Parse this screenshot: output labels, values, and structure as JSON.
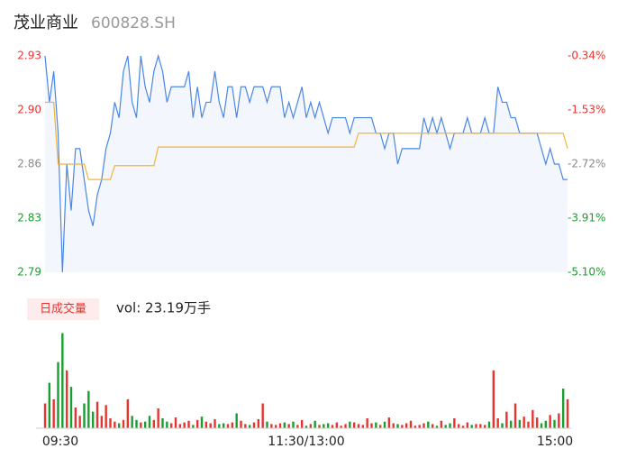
{
  "header": {
    "name": "茂业商业",
    "code": "600828.SH"
  },
  "chart_data": [
    {
      "type": "line",
      "xlim": [
        0,
        120
      ],
      "xticks": [
        {
          "value": 0,
          "label": "09:30"
        },
        {
          "value": 60,
          "label": "11:30/13:00"
        },
        {
          "value": 120,
          "label": "15:00"
        }
      ],
      "ylim": [
        2.79,
        2.93
      ],
      "yticks": [
        2.79,
        {
          "value": 2.825,
          "label": "2.83"
        },
        2.86,
        {
          "value": 2.895,
          "label": "2.90"
        },
        2.93
      ],
      "y2lim": [
        -5.1,
        -0.34
      ],
      "y2ticks": [
        {
          "value": -5.1,
          "label": "-5.10%"
        },
        {
          "value": -3.91,
          "label": "-3.91%"
        },
        {
          "value": -2.72,
          "label": "-2.72%"
        },
        {
          "value": -1.53,
          "label": "-1.53%"
        },
        {
          "value": -0.34,
          "label": "-0.34%"
        }
      ],
      "up_color": "#e8342f",
      "down_color": "#1a9e2f",
      "flat_color": "#888888",
      "series": [
        {
          "color": "#4a86e8",
          "fill": "#f3f7fd",
          "values": [
            2.93,
            2.9,
            2.92,
            2.88,
            2.79,
            2.86,
            2.83,
            2.87,
            2.87,
            2.85,
            2.83,
            2.82,
            2.84,
            2.85,
            2.87,
            2.88,
            2.9,
            2.89,
            2.92,
            2.93,
            2.9,
            2.89,
            2.93,
            2.91,
            2.9,
            2.92,
            2.93,
            2.92,
            2.9,
            2.91,
            2.91,
            2.91,
            2.91,
            2.92,
            2.89,
            2.91,
            2.89,
            2.9,
            2.9,
            2.92,
            2.9,
            2.89,
            2.91,
            2.91,
            2.89,
            2.91,
            2.91,
            2.9,
            2.91,
            2.91,
            2.91,
            2.9,
            2.91,
            2.91,
            2.91,
            2.89,
            2.9,
            2.89,
            2.9,
            2.91,
            2.89,
            2.9,
            2.89,
            2.9,
            2.89,
            2.88,
            2.89,
            2.89,
            2.89,
            2.89,
            2.88,
            2.89,
            2.89,
            2.89,
            2.89,
            2.89,
            2.88,
            2.88,
            2.87,
            2.88,
            2.88,
            2.86,
            2.87,
            2.87,
            2.87,
            2.87,
            2.87,
            2.89,
            2.88,
            2.89,
            2.88,
            2.89,
            2.88,
            2.87,
            2.88,
            2.88,
            2.88,
            2.89,
            2.88,
            2.88,
            2.88,
            2.89,
            2.88,
            2.88,
            2.91,
            2.9,
            2.9,
            2.89,
            2.89,
            2.88,
            2.88,
            2.88,
            2.88,
            2.88,
            2.87,
            2.86,
            2.87,
            2.86,
            2.86,
            2.85,
            2.85
          ]
        },
        {
          "color": "#f5b335",
          "values": [
            2.9,
            2.9,
            2.9,
            2.86,
            2.86,
            2.86,
            2.86,
            2.86,
            2.86,
            2.86,
            2.85,
            2.85,
            2.85,
            2.85,
            2.85,
            2.85,
            2.859,
            2.859,
            2.859,
            2.859,
            2.859,
            2.859,
            2.859,
            2.859,
            2.859,
            2.859,
            2.871,
            2.871,
            2.871,
            2.871,
            2.871,
            2.871,
            2.871,
            2.871,
            2.871,
            2.871,
            2.871,
            2.871,
            2.871,
            2.871,
            2.871,
            2.871,
            2.871,
            2.871,
            2.871,
            2.871,
            2.871,
            2.871,
            2.871,
            2.871,
            2.871,
            2.871,
            2.871,
            2.871,
            2.871,
            2.871,
            2.871,
            2.871,
            2.871,
            2.871,
            2.871,
            2.871,
            2.871,
            2.871,
            2.871,
            2.871,
            2.871,
            2.871,
            2.871,
            2.871,
            2.871,
            2.871,
            2.88,
            2.88,
            2.88,
            2.88,
            2.88,
            2.88,
            2.88,
            2.88,
            2.88,
            2.88,
            2.88,
            2.88,
            2.88,
            2.88,
            2.88,
            2.88,
            2.88,
            2.88,
            2.88,
            2.88,
            2.88,
            2.88,
            2.88,
            2.88,
            2.88,
            2.88,
            2.88,
            2.88,
            2.88,
            2.88,
            2.88,
            2.88,
            2.88,
            2.88,
            2.88,
            2.88,
            2.88,
            2.88,
            2.88,
            2.88,
            2.88,
            2.88,
            2.88,
            2.88,
            2.88,
            2.88,
            2.88,
            2.88,
            2.87
          ]
        }
      ]
    },
    {
      "type": "volume",
      "badge": "日成交量",
      "summary": "vol: 23.19万手",
      "ylim": [
        0,
        12000
      ],
      "values": [
        3000,
        5500,
        3500,
        8000,
        11500,
        7000,
        5000,
        2500,
        1500,
        3000,
        4500,
        2000,
        3200,
        1500,
        2800,
        1200,
        800,
        600,
        1000,
        3500,
        1500,
        1000,
        700,
        800,
        1500,
        1000,
        2400,
        1200,
        800,
        600,
        1300,
        500,
        700,
        900,
        400,
        1000,
        1400,
        800,
        600,
        1100,
        500,
        600,
        500,
        700,
        1800,
        900,
        500,
        400,
        700,
        1100,
        3000,
        800,
        500,
        400,
        600,
        700,
        500,
        800,
        400,
        1000,
        300,
        500,
        900,
        400,
        500,
        600,
        400,
        700,
        300,
        500,
        800,
        700,
        500,
        400,
        1200,
        600,
        700,
        400,
        800,
        1300,
        600,
        500,
        400,
        600,
        900,
        300,
        400,
        600,
        800,
        500,
        300,
        900,
        400,
        600,
        1200,
        500,
        300,
        700,
        400,
        500,
        500,
        400,
        800,
        7000,
        1200,
        600,
        2000,
        900,
        3000,
        1000,
        1400,
        800,
        2200,
        1300,
        600,
        900,
        1600,
        1000,
        1800,
        4800,
        3500
      ]
    }
  ]
}
